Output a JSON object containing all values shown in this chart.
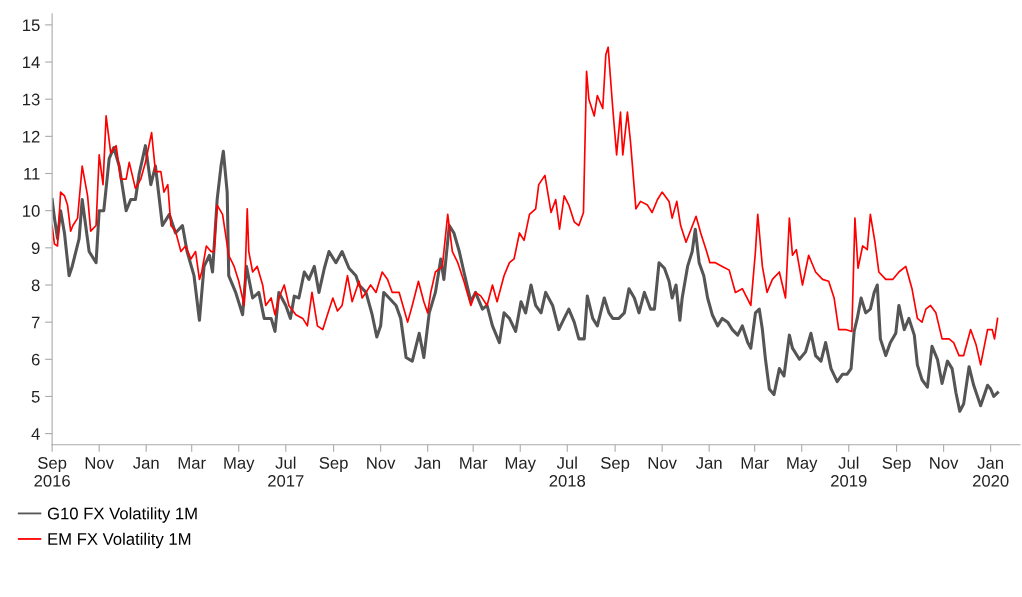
{
  "chart_data": {
    "type": "line",
    "xlim": [
      "2016-09-01",
      "2020-02-08"
    ],
    "ylim": [
      3.7,
      15.3
    ],
    "yticks": [
      4,
      5,
      6,
      7,
      8,
      9,
      10,
      11,
      12,
      13,
      14,
      15
    ],
    "xticks": [
      {
        "value": "2016-09-01",
        "label": "Sep\n2016"
      },
      {
        "value": "2016-11-01",
        "label": "Nov"
      },
      {
        "value": "2017-01-01",
        "label": "Jan"
      },
      {
        "value": "2017-03-01",
        "label": "Mar"
      },
      {
        "value": "2017-05-01",
        "label": "May"
      },
      {
        "value": "2017-07-01",
        "label": "Jul\n2017"
      },
      {
        "value": "2017-09-01",
        "label": "Sep"
      },
      {
        "value": "2017-11-01",
        "label": "Nov"
      },
      {
        "value": "2018-01-01",
        "label": "Jan"
      },
      {
        "value": "2018-03-01",
        "label": "Mar"
      },
      {
        "value": "2018-05-01",
        "label": "May"
      },
      {
        "value": "2018-07-01",
        "label": "Jul\n2018"
      },
      {
        "value": "2018-09-01",
        "label": "Sep"
      },
      {
        "value": "2018-11-01",
        "label": "Nov"
      },
      {
        "value": "2019-01-01",
        "label": "Jan"
      },
      {
        "value": "2019-03-01",
        "label": "Mar"
      },
      {
        "value": "2019-05-01",
        "label": "May"
      },
      {
        "value": "2019-07-01",
        "label": "Jul\n2019"
      },
      {
        "value": "2019-09-01",
        "label": "Sep"
      },
      {
        "value": "2019-11-01",
        "label": "Nov"
      },
      {
        "value": "2020-01-01",
        "label": "Jan\n2020"
      }
    ],
    "grid": false,
    "legend": "bottom left",
    "marker": "none",
    "line_style": "solid",
    "series": [
      {
        "name": "G10 FX Volatility 1M",
        "color": "#555555",
        "x": [
          "2016-09-01",
          "2016-09-04",
          "2016-09-08",
          "2016-09-12",
          "2016-09-17",
          "2016-09-23",
          "2016-09-27",
          "2016-10-06",
          "2016-10-10",
          "2016-10-19",
          "2016-10-28",
          "2016-11-01",
          "2016-11-07",
          "2016-11-14",
          "2016-11-20",
          "2016-11-27",
          "2016-12-06",
          "2016-12-12",
          "2016-12-18",
          "2016-12-23",
          "2016-12-31",
          "2017-01-07",
          "2017-01-13",
          "2017-01-22",
          "2017-01-31",
          "2017-02-08",
          "2017-02-17",
          "2017-02-23",
          "2017-03-04",
          "2017-03-11",
          "2017-03-17",
          "2017-03-24",
          "2017-03-28",
          "2017-04-03",
          "2017-04-08",
          "2017-04-11",
          "2017-04-16",
          "2017-04-18",
          "2017-04-27",
          "2017-05-06",
          "2017-05-11",
          "2017-05-19",
          "2017-05-27",
          "2017-06-03",
          "2017-06-12",
          "2017-06-17",
          "2017-06-22",
          "2017-07-01",
          "2017-07-07",
          "2017-07-12",
          "2017-07-18",
          "2017-07-25",
          "2017-07-31",
          "2017-08-07",
          "2017-08-13",
          "2017-08-20",
          "2017-08-26",
          "2017-09-04",
          "2017-09-12",
          "2017-09-21",
          "2017-09-30",
          "2017-10-04",
          "2017-10-13",
          "2017-10-21",
          "2017-10-27",
          "2017-11-01",
          "2017-11-05",
          "2017-11-12",
          "2017-11-21",
          "2017-11-27",
          "2017-12-04",
          "2017-12-12",
          "2017-12-21",
          "2017-12-27",
          "2018-01-03",
          "2018-01-11",
          "2018-01-18",
          "2018-01-22",
          "2018-01-29",
          "2018-02-04",
          "2018-02-11",
          "2018-02-17",
          "2018-02-26",
          "2018-03-04",
          "2018-03-13",
          "2018-03-19",
          "2018-03-26",
          "2018-04-04",
          "2018-04-10",
          "2018-04-17",
          "2018-04-25",
          "2018-05-02",
          "2018-05-08",
          "2018-05-15",
          "2018-05-21",
          "2018-05-28",
          "2018-06-03",
          "2018-06-12",
          "2018-06-20",
          "2018-06-27",
          "2018-07-03",
          "2018-07-10",
          "2018-07-16",
          "2018-07-23",
          "2018-07-27",
          "2018-08-03",
          "2018-08-09",
          "2018-08-18",
          "2018-08-24",
          "2018-08-29",
          "2018-09-06",
          "2018-09-13",
          "2018-09-19",
          "2018-09-26",
          "2018-10-02",
          "2018-10-09",
          "2018-10-17",
          "2018-10-22",
          "2018-10-28",
          "2018-11-04",
          "2018-11-10",
          "2018-11-14",
          "2018-11-19",
          "2018-11-24",
          "2018-11-27",
          "2018-12-04",
          "2018-12-10",
          "2018-12-14",
          "2018-12-19",
          "2018-12-25",
          "2018-12-30",
          "2019-01-05",
          "2019-01-12",
          "2019-01-18",
          "2019-01-25",
          "2019-01-31",
          "2019-02-07",
          "2019-02-13",
          "2019-02-20",
          "2019-02-24",
          "2019-03-02",
          "2019-03-07",
          "2019-03-11",
          "2019-03-15",
          "2019-03-20",
          "2019-03-26",
          "2019-04-02",
          "2019-04-08",
          "2019-04-15",
          "2019-04-19",
          "2019-04-28",
          "2019-05-06",
          "2019-05-13",
          "2019-05-19",
          "2019-05-26",
          "2019-06-01",
          "2019-06-08",
          "2019-06-16",
          "2019-06-23",
          "2019-06-29",
          "2019-07-04",
          "2019-07-08",
          "2019-07-12",
          "2019-07-17",
          "2019-07-23",
          "2019-07-29",
          "2019-08-03",
          "2019-08-07",
          "2019-08-11",
          "2019-08-18",
          "2019-08-24",
          "2019-08-31",
          "2019-09-04",
          "2019-09-11",
          "2019-09-17",
          "2019-09-24",
          "2019-09-28",
          "2019-10-04",
          "2019-10-11",
          "2019-10-17",
          "2019-10-24",
          "2019-10-30",
          "2019-11-06",
          "2019-11-12",
          "2019-11-17",
          "2019-11-22",
          "2019-11-27",
          "2019-12-04",
          "2019-12-10",
          "2019-12-19",
          "2019-12-28",
          "2020-01-01",
          "2020-01-05",
          "2020-01-10"
        ],
        "values": [
          10.3,
          9.8,
          9.25,
          10.0,
          9.4,
          8.25,
          8.5,
          9.25,
          10.3,
          8.9,
          8.6,
          10.0,
          10.0,
          11.4,
          11.7,
          11.2,
          10.0,
          10.3,
          10.3,
          11.0,
          11.75,
          10.7,
          11.2,
          9.6,
          9.9,
          9.4,
          9.6,
          8.9,
          8.25,
          7.05,
          8.5,
          8.8,
          8.35,
          10.3,
          11.2,
          11.6,
          10.5,
          8.25,
          7.8,
          7.2,
          8.5,
          7.65,
          7.8,
          7.1,
          7.1,
          6.75,
          7.8,
          7.45,
          7.1,
          7.7,
          7.65,
          8.35,
          8.15,
          8.5,
          7.8,
          8.45,
          8.9,
          8.6,
          8.9,
          8.45,
          8.25,
          8.0,
          7.8,
          7.2,
          6.6,
          6.9,
          7.8,
          7.65,
          7.45,
          7.1,
          6.05,
          5.95,
          6.7,
          6.05,
          7.25,
          7.8,
          8.7,
          8.15,
          9.6,
          9.4,
          8.9,
          8.35,
          7.55,
          7.8,
          7.35,
          7.45,
          6.9,
          6.45,
          7.25,
          7.1,
          6.75,
          7.55,
          7.25,
          8.0,
          7.45,
          7.25,
          7.8,
          7.45,
          6.8,
          7.1,
          7.35,
          7.0,
          6.55,
          6.55,
          7.7,
          7.1,
          6.9,
          7.65,
          7.25,
          7.1,
          7.1,
          7.25,
          7.9,
          7.65,
          7.25,
          7.8,
          7.35,
          7.35,
          8.6,
          8.45,
          8.1,
          7.65,
          8.0,
          7.05,
          7.65,
          8.5,
          8.9,
          9.5,
          8.6,
          8.25,
          7.65,
          7.2,
          6.9,
          7.1,
          7.0,
          6.8,
          6.65,
          6.9,
          6.45,
          6.3,
          7.25,
          7.35,
          6.8,
          6.0,
          5.2,
          5.05,
          5.75,
          5.55,
          6.65,
          6.3,
          6.0,
          6.2,
          6.7,
          6.1,
          5.95,
          6.45,
          5.75,
          5.4,
          5.6,
          5.6,
          5.75,
          6.75,
          7.1,
          7.65,
          7.25,
          7.35,
          7.8,
          8.0,
          6.55,
          6.1,
          6.45,
          6.7,
          7.45,
          6.8,
          7.1,
          6.65,
          5.85,
          5.45,
          5.25,
          6.35,
          6.0,
          5.35,
          5.95,
          5.75,
          5.1,
          4.6,
          4.8,
          5.8,
          5.3,
          4.75,
          5.3,
          5.2,
          5.0,
          5.1
        ]
      },
      {
        "name": "EM FX Volatility 1M",
        "color": "#ff0000",
        "x": [
          "2016-09-01",
          "2016-09-04",
          "2016-09-08",
          "2016-09-12",
          "2016-09-17",
          "2016-09-21",
          "2016-09-25",
          "2016-09-28",
          "2016-10-04",
          "2016-10-10",
          "2016-10-17",
          "2016-10-21",
          "2016-10-28",
          "2016-11-01",
          "2016-11-06",
          "2016-11-10",
          "2016-11-16",
          "2016-11-23",
          "2016-11-29",
          "2016-12-06",
          "2016-12-10",
          "2016-12-14",
          "2016-12-18",
          "2016-12-25",
          "2016-12-31",
          "2017-01-08",
          "2017-01-13",
          "2017-01-20",
          "2017-01-24",
          "2017-01-29",
          "2017-02-02",
          "2017-02-08",
          "2017-02-15",
          "2017-02-21",
          "2017-02-28",
          "2017-03-06",
          "2017-03-11",
          "2017-03-14",
          "2017-03-20",
          "2017-03-26",
          "2017-03-30",
          "2017-04-03",
          "2017-04-10",
          "2017-04-18",
          "2017-04-25",
          "2017-05-01",
          "2017-05-08",
          "2017-05-12",
          "2017-05-14",
          "2017-05-19",
          "2017-05-25",
          "2017-06-01",
          "2017-06-05",
          "2017-06-12",
          "2017-06-17",
          "2017-06-22",
          "2017-06-29",
          "2017-07-05",
          "2017-07-14",
          "2017-07-23",
          "2017-07-29",
          "2017-08-04",
          "2017-08-11",
          "2017-08-18",
          "2017-08-24",
          "2017-08-31",
          "2017-09-06",
          "2017-09-12",
          "2017-09-19",
          "2017-09-25",
          "2017-10-04",
          "2017-10-08",
          "2017-10-13",
          "2017-10-19",
          "2017-10-26",
          "2017-11-03",
          "2017-11-10",
          "2017-11-16",
          "2017-11-25",
          "2017-12-06",
          "2017-12-12",
          "2017-12-20",
          "2017-12-27",
          "2018-01-01",
          "2018-01-05",
          "2018-01-11",
          "2018-01-20",
          "2018-01-27",
          "2018-02-02",
          "2018-02-09",
          "2018-02-17",
          "2018-02-26",
          "2018-03-04",
          "2018-03-11",
          "2018-03-19",
          "2018-03-26",
          "2018-04-01",
          "2018-04-10",
          "2018-04-17",
          "2018-04-23",
          "2018-04-30",
          "2018-05-06",
          "2018-05-13",
          "2018-05-21",
          "2018-05-25",
          "2018-06-02",
          "2018-06-10",
          "2018-06-16",
          "2018-06-21",
          "2018-06-27",
          "2018-07-03",
          "2018-07-10",
          "2018-07-16",
          "2018-07-22",
          "2018-07-26",
          "2018-07-29",
          "2018-08-05",
          "2018-08-09",
          "2018-08-16",
          "2018-08-20",
          "2018-08-23",
          "2018-08-29",
          "2018-09-03",
          "2018-09-08",
          "2018-09-11",
          "2018-09-17",
          "2018-09-21",
          "2018-09-28",
          "2018-10-04",
          "2018-10-13",
          "2018-10-19",
          "2018-10-26",
          "2018-11-01",
          "2018-11-10",
          "2018-11-14",
          "2018-11-20",
          "2018-11-25",
          "2018-12-02",
          "2018-12-15",
          "2018-12-21",
          "2018-12-28",
          "2019-01-02",
          "2019-01-09",
          "2019-01-18",
          "2019-01-27",
          "2019-02-04",
          "2019-02-13",
          "2019-02-24",
          "2019-03-02",
          "2019-03-05",
          "2019-03-11",
          "2019-03-17",
          "2019-03-24",
          "2019-04-02",
          "2019-04-10",
          "2019-04-15",
          "2019-04-19",
          "2019-04-24",
          "2019-05-02",
          "2019-05-10",
          "2019-05-19",
          "2019-05-28",
          "2019-06-05",
          "2019-06-12",
          "2019-06-18",
          "2019-06-27",
          "2019-07-05",
          "2019-07-09",
          "2019-07-13",
          "2019-07-19",
          "2019-07-25",
          "2019-07-29",
          "2019-08-04",
          "2019-08-09",
          "2019-08-18",
          "2019-08-27",
          "2019-09-04",
          "2019-09-13",
          "2019-09-21",
          "2019-09-28",
          "2019-10-04",
          "2019-10-09",
          "2019-10-15",
          "2019-10-22",
          "2019-10-30",
          "2019-11-08",
          "2019-11-14",
          "2019-11-21",
          "2019-11-27",
          "2019-12-06",
          "2019-12-13",
          "2019-12-19",
          "2019-12-28",
          "2020-01-03",
          "2020-01-06",
          "2020-01-10"
        ],
        "values": [
          9.6,
          9.1,
          9.05,
          10.5,
          10.4,
          10.15,
          9.45,
          9.6,
          9.8,
          11.2,
          10.4,
          9.45,
          9.6,
          11.5,
          10.7,
          12.55,
          11.55,
          11.75,
          10.85,
          10.85,
          11.3,
          10.95,
          10.6,
          10.85,
          11.3,
          12.1,
          11.05,
          11.05,
          10.5,
          10.7,
          9.6,
          9.45,
          8.9,
          9.05,
          8.7,
          8.9,
          8.15,
          8.35,
          9.05,
          8.9,
          8.9,
          10.15,
          9.9,
          8.8,
          8.5,
          8.1,
          7.45,
          10.05,
          8.9,
          8.35,
          8.5,
          8.0,
          7.45,
          7.65,
          7.2,
          7.65,
          8.0,
          7.45,
          7.2,
          7.1,
          6.9,
          7.8,
          6.9,
          6.8,
          7.2,
          7.65,
          7.3,
          7.45,
          8.25,
          7.55,
          8.1,
          7.65,
          7.8,
          8.0,
          7.8,
          8.35,
          8.15,
          7.8,
          7.8,
          7.0,
          7.45,
          8.1,
          7.55,
          7.25,
          7.8,
          8.35,
          8.5,
          9.9,
          8.9,
          8.6,
          8.1,
          7.45,
          7.8,
          7.7,
          7.45,
          8.0,
          7.55,
          8.25,
          8.6,
          8.7,
          9.4,
          9.2,
          9.9,
          10.05,
          10.7,
          10.95,
          9.95,
          10.3,
          9.5,
          10.4,
          10.15,
          9.7,
          9.6,
          9.95,
          13.75,
          13.0,
          12.55,
          13.1,
          12.75,
          14.2,
          14.4,
          12.75,
          11.5,
          12.65,
          11.5,
          12.65,
          11.85,
          10.05,
          10.25,
          10.15,
          9.95,
          10.3,
          10.5,
          10.25,
          9.8,
          10.25,
          9.6,
          9.15,
          9.85,
          9.4,
          8.95,
          8.6,
          8.6,
          8.5,
          8.4,
          7.8,
          7.9,
          7.45,
          8.9,
          9.9,
          8.5,
          7.8,
          8.15,
          8.35,
          7.65,
          9.8,
          8.8,
          8.95,
          8.0,
          8.8,
          8.35,
          8.15,
          8.1,
          7.65,
          6.8,
          6.8,
          6.75,
          9.8,
          8.45,
          9.05,
          8.95,
          9.9,
          9.15,
          8.35,
          8.15,
          8.15,
          8.35,
          8.5,
          7.9,
          7.1,
          7.0,
          7.35,
          7.45,
          7.25,
          6.55,
          6.55,
          6.45,
          6.1,
          6.1,
          6.8,
          6.4,
          5.85,
          6.8,
          6.8,
          6.55,
          7.1
        ]
      }
    ]
  }
}
